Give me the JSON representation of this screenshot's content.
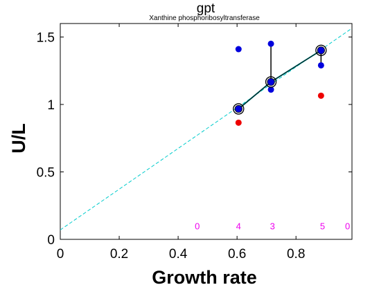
{
  "chart_data": {
    "type": "scatter",
    "title": "gpt",
    "subtitle": "Xanthine phosphoribosyltransferase",
    "xlabel": "Growth rate",
    "ylabel": "U/L",
    "xlim": [
      0,
      0.99
    ],
    "ylim": [
      0,
      1.6
    ],
    "xticks": [
      0,
      0.2,
      0.4,
      0.6,
      0.8
    ],
    "xtick_labels": [
      "0",
      "0.2",
      "0.4",
      "0.6",
      "0.8"
    ],
    "yticks": [
      0,
      0.5,
      1,
      1.5
    ],
    "ytick_labels": [
      "0",
      "0.5",
      "1",
      "1.5"
    ],
    "grid": false,
    "colors": {
      "blue_points": "#0000dd",
      "red_points": "#ee0000",
      "fit_line": "#00cccc",
      "mean_line": "#008080",
      "count_labels": "#ee00ee",
      "axis": "#000000"
    },
    "blue_points": [
      {
        "x": 0.605,
        "y": 1.41
      },
      {
        "x": 0.715,
        "y": 1.45
      },
      {
        "x": 0.715,
        "y": 1.11
      },
      {
        "x": 0.885,
        "y": 1.29
      }
    ],
    "red_points": [
      {
        "x": 0.605,
        "y": 0.865
      },
      {
        "x": 0.885,
        "y": 1.065
      }
    ],
    "means": [
      {
        "x": 0.605,
        "y": 0.967
      },
      {
        "x": 0.715,
        "y": 1.167
      },
      {
        "x": 0.885,
        "y": 1.401
      }
    ],
    "error_bars": [
      {
        "x": 0.715,
        "low": 1.167,
        "high": 1.45
      },
      {
        "x": 0.885,
        "low": 1.29,
        "high": 1.401
      }
    ],
    "fit_line": {
      "intercept": 0.07,
      "slope": 1.51
    },
    "counts": [
      {
        "x": 0.465,
        "label": "0"
      },
      {
        "x": 0.605,
        "label": "4"
      },
      {
        "x": 0.72,
        "label": "3"
      },
      {
        "x": 0.89,
        "label": "5"
      },
      {
        "x": 0.975,
        "label": "0"
      }
    ]
  }
}
